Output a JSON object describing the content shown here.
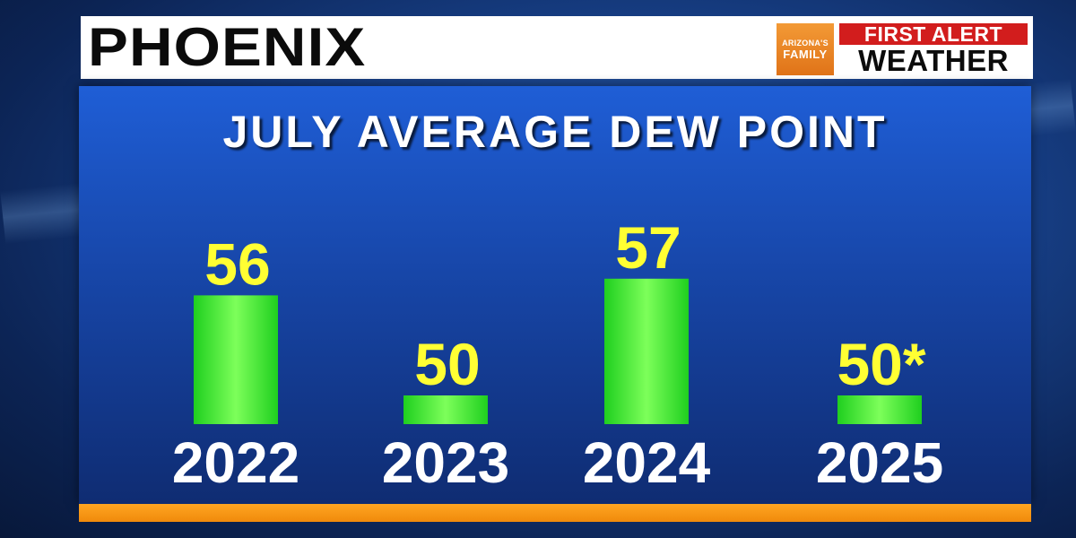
{
  "header": {
    "city": "PHOENIX",
    "logo_top": "ARIZONA'S",
    "logo_bottom": "FAMILY",
    "badge_line1": "FIRST ALERT",
    "badge_line2": "WEATHER"
  },
  "colors": {
    "bar": "#22dd22",
    "bar_highlight": "#7dff5a",
    "value_label": "#ffff33",
    "category_label": "#ffffff",
    "panel": "#1a52c0",
    "accent_orange": "#f5950f",
    "alert_red": "#d21d1d"
  },
  "chart_data": {
    "type": "bar",
    "title": "JULY AVERAGE DEW POINT",
    "categories": [
      "2022",
      "2023",
      "2024",
      "2025"
    ],
    "values": [
      56,
      50,
      57,
      50
    ],
    "value_labels": [
      "56",
      "50",
      "57",
      "50*"
    ],
    "xlabel": "",
    "ylabel": "",
    "ylim": [
      45,
      60
    ],
    "grid": false,
    "legend": "none"
  }
}
